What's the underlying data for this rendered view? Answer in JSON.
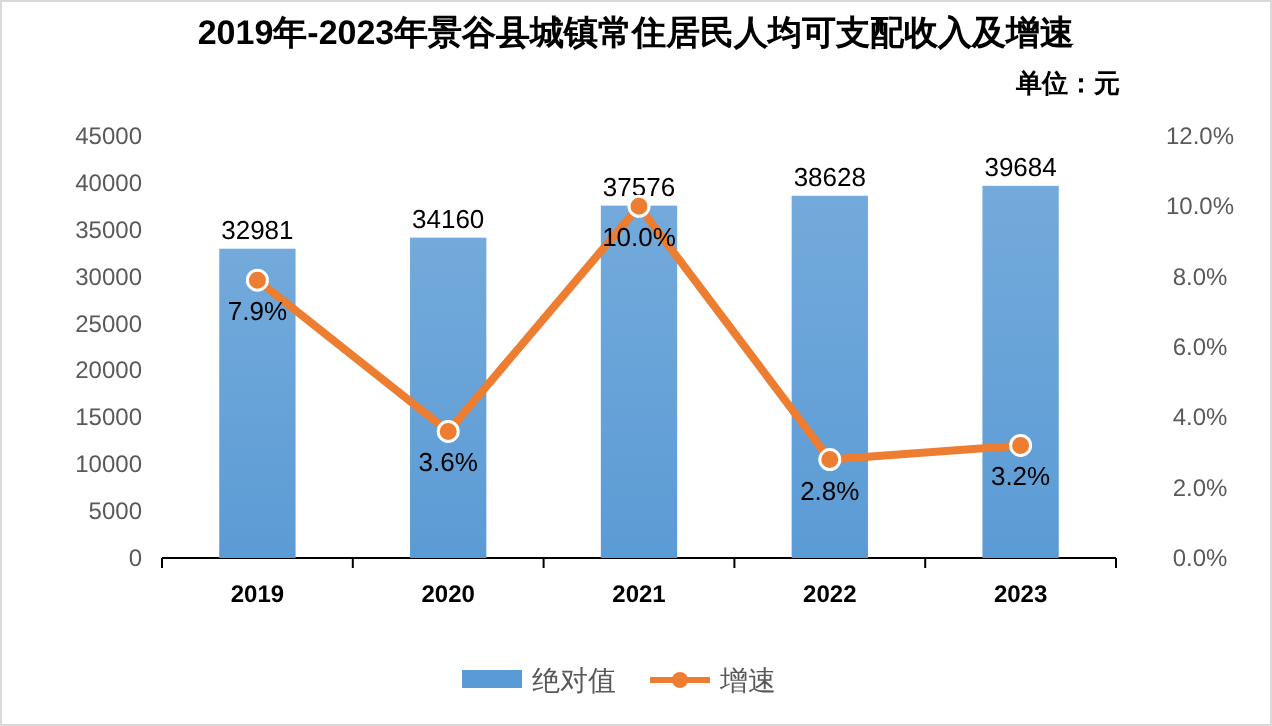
{
  "chart_data": {
    "type": "bar",
    "title": "2019年-2023年景谷县城镇常住居民人均可支配收入及增速",
    "annotations": [
      "单位：元"
    ],
    "categories": [
      "2019",
      "2020",
      "2021",
      "2022",
      "2023"
    ],
    "series": [
      {
        "name": "绝对值",
        "color": "#5b9bd5",
        "values": [
          32981,
          34160,
          37576,
          38628,
          39684
        ],
        "value_labels": [
          "32981",
          "34160",
          "37576",
          "38628",
          "39684"
        ]
      },
      {
        "name": "增速",
        "type": "line",
        "axis": "y2",
        "color": "#ed7d31",
        "marker": "circle",
        "values": [
          7.9,
          3.6,
          10.0,
          2.8,
          3.2
        ],
        "value_labels": [
          "7.9%",
          "3.6%",
          "10.0%",
          "2.8%",
          "3.2%"
        ]
      }
    ],
    "ylim": [
      0,
      45000
    ],
    "yticks": [
      0,
      5000,
      10000,
      15000,
      20000,
      25000,
      30000,
      35000,
      40000,
      45000
    ],
    "y2lim": [
      0,
      12
    ],
    "y2ticks": [
      {
        "value": 0,
        "label": "0.0%"
      },
      {
        "value": 2,
        "label": "2.0%"
      },
      {
        "value": 4,
        "label": "4.0%"
      },
      {
        "value": 6,
        "label": "6.0%"
      },
      {
        "value": 8,
        "label": "8.0%"
      },
      {
        "value": 10,
        "label": "10.0%"
      },
      {
        "value": 12,
        "label": "12.0%"
      }
    ],
    "grid": false,
    "legend": "bottom"
  }
}
